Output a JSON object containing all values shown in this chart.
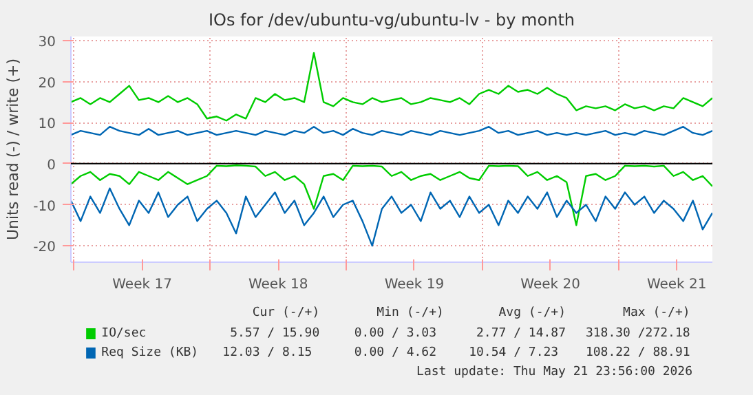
{
  "chart_data": {
    "type": "line",
    "title": "IOs for /dev/ubuntu-vg/ubuntu-lv - by month",
    "ylabel": "Units read (-) / write (+)",
    "x": [
      "2026-04-19T20:00",
      "2026-04-20T08:00",
      "2026-04-20T20:00",
      "2026-04-21T08:00",
      "2026-04-21T20:00",
      "2026-04-22T08:00",
      "2026-04-22T20:00",
      "2026-04-23T08:00",
      "2026-04-23T20:00",
      "2026-04-24T08:00",
      "2026-04-24T20:00",
      "2026-04-25T08:00",
      "2026-04-25T20:00",
      "2026-04-26T08:00",
      "2026-04-26T20:00",
      "2026-04-27T08:00",
      "2026-04-27T20:00",
      "2026-04-28T08:00",
      "2026-04-28T20:00",
      "2026-04-29T08:00",
      "2026-04-29T20:00",
      "2026-04-30T08:00",
      "2026-04-30T20:00",
      "2026-05-01T08:00",
      "2026-05-01T20:00",
      "2026-05-02T08:00",
      "2026-05-02T20:00",
      "2026-05-03T08:00",
      "2026-05-03T20:00",
      "2026-05-04T08:00",
      "2026-05-04T20:00",
      "2026-05-05T08:00",
      "2026-05-05T20:00",
      "2026-05-06T08:00",
      "2026-05-06T20:00",
      "2026-05-07T08:00",
      "2026-05-07T20:00",
      "2026-05-08T08:00",
      "2026-05-08T20:00",
      "2026-05-09T08:00",
      "2026-05-09T20:00",
      "2026-05-10T08:00",
      "2026-05-10T20:00",
      "2026-05-11T08:00",
      "2026-05-11T20:00",
      "2026-05-12T08:00",
      "2026-05-12T20:00",
      "2026-05-13T08:00",
      "2026-05-13T20:00",
      "2026-05-14T08:00",
      "2026-05-14T20:00",
      "2026-05-15T08:00",
      "2026-05-15T20:00",
      "2026-05-16T08:00",
      "2026-05-16T20:00",
      "2026-05-17T08:00",
      "2026-05-17T20:00",
      "2026-05-18T08:00",
      "2026-05-18T20:00",
      "2026-05-19T08:00",
      "2026-05-19T20:00",
      "2026-05-20T08:00",
      "2026-05-20T20:00",
      "2026-05-21T08:00",
      "2026-05-21T20:00",
      "2026-05-22T08:00",
      "2026-05-22T20:00"
    ],
    "series": [
      {
        "name": "IO/sec",
        "color": "#00cc00",
        "values": [
          15,
          16,
          14.5,
          16,
          15,
          17,
          19,
          15.5,
          16,
          15,
          16.5,
          15,
          16,
          14.5,
          11,
          11.5,
          10.5,
          12,
          11,
          16,
          15,
          17,
          15.5,
          16,
          15,
          27,
          15,
          14,
          16,
          15,
          14.5,
          16,
          15,
          15.5,
          16,
          14.5,
          15,
          16,
          15.5,
          15,
          16,
          14.5,
          17,
          18,
          17,
          19,
          17.5,
          18,
          17,
          18.5,
          17,
          16,
          13,
          14,
          13.5,
          14,
          13,
          14.5,
          13.5,
          14,
          13,
          14,
          13.5,
          16,
          15,
          14,
          16
        ]
      },
      {
        "color": "#00cc00",
        "values": [
          -5,
          -3,
          -2,
          -4,
          -2.5,
          -3,
          -5,
          -2,
          -3,
          -4,
          -2,
          -3.5,
          -5,
          -4,
          -3,
          -0.5,
          -0.6,
          -0.4,
          -0.5,
          -0.7,
          -3,
          -2,
          -4,
          -3,
          -5,
          -11,
          -3,
          -2.5,
          -4,
          -0.5,
          -0.6,
          -0.5,
          -0.7,
          -3,
          -2,
          -4,
          -3,
          -2.5,
          -4,
          -3,
          -2,
          -3.5,
          -4,
          -0.5,
          -0.6,
          -0.5,
          -0.6,
          -3,
          -2,
          -4,
          -3,
          -4.5,
          -15,
          -3,
          -2.5,
          -4,
          -3,
          -0.5,
          -0.6,
          -0.5,
          -0.7,
          -0.5,
          -3,
          -2,
          -4,
          -3,
          -5.5
        ]
      },
      {
        "name": "Req Size (KB)",
        "color": "#0066b3",
        "values": [
          7,
          8,
          7.5,
          7,
          9,
          8,
          7.5,
          7,
          8.5,
          7,
          7.5,
          8,
          7,
          7.5,
          8,
          7,
          7.5,
          8,
          7.5,
          7,
          8,
          7.5,
          7,
          8,
          7.5,
          9,
          7.5,
          8,
          7,
          8.5,
          7.5,
          7,
          8,
          7.5,
          7,
          8,
          7.5,
          7,
          8,
          7.5,
          7,
          7.5,
          8,
          9,
          7.5,
          8,
          7,
          7.5,
          8,
          7,
          7.5,
          7,
          7.5,
          7,
          7.5,
          8,
          7,
          7.5,
          7,
          8,
          7.5,
          7,
          8,
          9,
          7.5,
          7,
          8
        ]
      },
      {
        "color": "#0066b3",
        "values": [
          -9,
          -14,
          -8,
          -12,
          -6,
          -11,
          -15,
          -9,
          -12,
          -7,
          -13,
          -10,
          -8,
          -14,
          -11,
          -9,
          -12,
          -17,
          -8,
          -13,
          -10,
          -7,
          -12,
          -9,
          -15,
          -12,
          -8,
          -13,
          -10,
          -9,
          -14,
          -20,
          -11,
          -8,
          -12,
          -10,
          -14,
          -7,
          -11,
          -9,
          -13,
          -8,
          -12,
          -10,
          -15,
          -9,
          -12,
          -8,
          -11,
          -7,
          -13,
          -9,
          -12,
          -10,
          -14,
          -8,
          -11,
          -7,
          -10,
          -8,
          -12,
          -9,
          -11,
          -14,
          -9,
          -16,
          -12
        ]
      }
    ],
    "xlim": [
      "2026-04-19T20:00",
      "2026-05-22T20:00"
    ],
    "ylim": [
      -24,
      31
    ],
    "yticks": [
      -20,
      -10,
      0,
      10,
      20,
      30
    ],
    "xticks": [
      {
        "value": "2026-04-20",
        "label": null
      },
      {
        "value": "2026-04-23T12:00",
        "label": "Week 17"
      },
      {
        "value": "2026-04-27",
        "label": null
      },
      {
        "value": "2026-04-30T12:00",
        "label": "Week 18"
      },
      {
        "value": "2026-05-04",
        "label": null
      },
      {
        "value": "2026-05-07T12:00",
        "label": "Week 19"
      },
      {
        "value": "2026-05-11",
        "label": null
      },
      {
        "value": "2026-05-14T12:00",
        "label": "Week 20"
      },
      {
        "value": "2026-05-18",
        "label": null
      },
      {
        "value": "2026-05-21T00:00",
        "label": "Week 21"
      }
    ],
    "ref_lines": [
      {
        "axis": "y",
        "value": 0,
        "color": "#000000"
      }
    ],
    "grid": true,
    "legend": "bottom",
    "marker": "none",
    "line_style": "solid",
    "annotations": [
      "Cur (-/+)",
      "Min (-/+)",
      "Avg (-/+)",
      "Max (-/+)",
      "5.57 / 15.90",
      "0.00 /  3.03",
      "2.77 / 14.87",
      "318.30 /272.18",
      "12.03 /  8.15",
      "0.00 /  4.62",
      "10.54 /  7.23",
      "108.22 / 88.91",
      "Last update: Thu May 21 23:56:00 2026"
    ]
  }
}
